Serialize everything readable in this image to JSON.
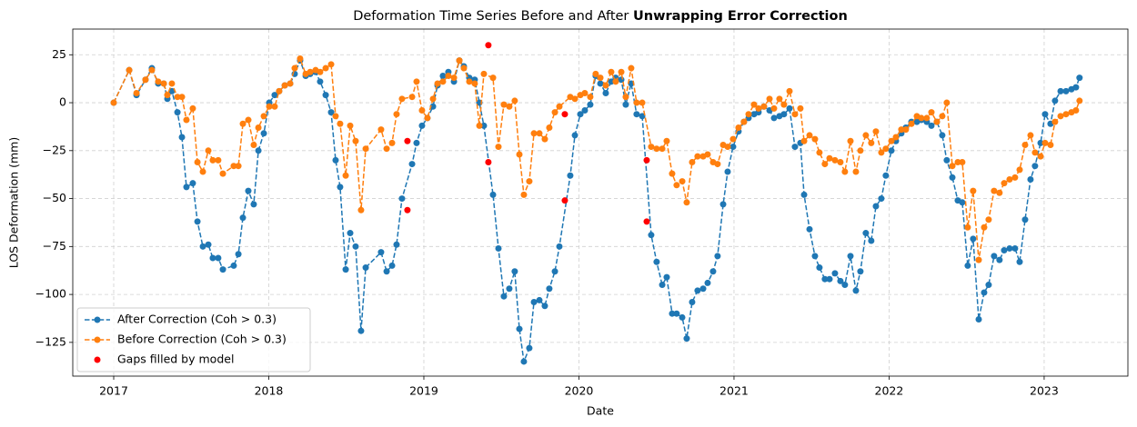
{
  "chart_data": {
    "type": "line",
    "title": "Deformation Time Series Before and After ",
    "title_bold": "Unwrapping Error Correction",
    "xlabel": "Date",
    "ylabel": "LOS Deformation (mm)",
    "xlim": [
      2016.736,
      2023.54
    ],
    "xticks": [
      2017,
      2018,
      2019,
      2020,
      2021,
      2022,
      2023
    ],
    "ylim": [
      -142.6,
      38.4
    ],
    "yticks": [
      {
        "value": -125,
        "label": "−125"
      },
      {
        "value": -100,
        "label": "−100"
      },
      {
        "value": -75,
        "label": "−75"
      },
      {
        "value": -50,
        "label": "−50"
      },
      {
        "value": -25,
        "label": "−25"
      },
      0,
      25
    ],
    "grid": true,
    "legend": "lower left",
    "x": [
      2017.0,
      2017.1,
      2017.147,
      2017.205,
      2017.246,
      2017.287,
      2017.323,
      2017.346,
      2017.375,
      2017.411,
      2017.44,
      2017.469,
      2017.51,
      2017.54,
      2017.575,
      2017.61,
      2017.639,
      2017.674,
      2017.704,
      2017.774,
      2017.804,
      2017.833,
      2017.868,
      2017.903,
      2017.933,
      2017.968,
      2018.003,
      2018.038,
      2018.067,
      2018.103,
      2018.138,
      2018.167,
      2018.202,
      2018.238,
      2018.267,
      2018.302,
      2018.331,
      2018.367,
      2018.402,
      2018.431,
      2018.46,
      2018.496,
      2018.525,
      2018.56,
      2018.595,
      2018.625,
      2018.724,
      2018.76,
      2018.795,
      2018.824,
      2018.859,
      2018.924,
      2018.953,
      2018.988,
      2019.023,
      2019.059,
      2019.088,
      2019.123,
      2019.158,
      2019.194,
      2019.229,
      2019.258,
      2019.293,
      2019.328,
      2019.358,
      2019.387,
      2019.446,
      2019.481,
      2019.516,
      2019.551,
      2019.586,
      2019.616,
      2019.645,
      2019.68,
      2019.71,
      2019.745,
      2019.78,
      2019.809,
      2019.845,
      2019.874,
      2019.944,
      2019.974,
      2020.009,
      2020.038,
      2020.073,
      2020.108,
      2020.138,
      2020.173,
      2020.208,
      2020.237,
      2020.273,
      2020.302,
      2020.337,
      2020.372,
      2020.408,
      2020.466,
      2020.501,
      2020.537,
      2020.566,
      2020.601,
      2020.63,
      2020.666,
      2020.695,
      2020.73,
      2020.765,
      2020.801,
      2020.83,
      2020.865,
      2020.894,
      2020.93,
      2020.959,
      2020.994,
      2021.029,
      2021.064,
      2021.094,
      2021.129,
      2021.158,
      2021.193,
      2021.229,
      2021.258,
      2021.293,
      2021.322,
      2021.358,
      2021.393,
      2021.428,
      2021.452,
      2021.487,
      2021.522,
      2021.551,
      2021.586,
      2021.616,
      2021.651,
      2021.686,
      2021.715,
      2021.751,
      2021.786,
      2021.815,
      2021.85,
      2021.885,
      2021.915,
      2021.95,
      2021.979,
      2022.015,
      2022.044,
      2022.079,
      2022.108,
      2022.144,
      2022.179,
      2022.208,
      2022.243,
      2022.273,
      2022.308,
      2022.343,
      2022.372,
      2022.408,
      2022.443,
      2022.472,
      2022.507,
      2022.542,
      2022.578,
      2022.613,
      2022.642,
      2022.677,
      2022.712,
      2022.742,
      2022.777,
      2022.812,
      2022.842,
      2022.877,
      2022.912,
      2022.941,
      2022.977,
      2023.006,
      2023.041,
      2023.07,
      2023.106,
      2023.141,
      2023.176,
      2023.205,
      2023.228
    ],
    "series": [
      {
        "name": "After Correction (Coh > 0.3)",
        "color": "#1f77b4",
        "linestyle": "dashed",
        "marker": true,
        "values": [
          0,
          17,
          4,
          12,
          18,
          10,
          10,
          2,
          6,
          -5,
          -18,
          -44,
          -42,
          -62,
          -75,
          -74,
          -81,
          -81,
          -87,
          -85,
          -79,
          -60,
          -46,
          -53,
          -25,
          -16,
          0,
          4,
          6,
          9,
          10,
          15,
          22,
          14,
          15,
          16,
          11,
          4,
          -5,
          -30,
          -44,
          -87,
          -68,
          -75,
          -119,
          -86,
          -78,
          -88,
          -85,
          -74,
          -50,
          -32,
          -21,
          -12,
          -8,
          -2,
          9,
          14,
          16,
          11,
          22,
          19,
          13,
          12,
          0,
          -12,
          -48,
          -76,
          -101,
          -97,
          -88,
          -118,
          -135,
          -128,
          -104,
          -103,
          -106,
          -97,
          -88,
          -75,
          -38,
          -17,
          -6,
          -4,
          -1,
          14,
          10,
          5,
          11,
          13,
          12,
          -1,
          10,
          -6,
          -7,
          -69,
          -83,
          -95,
          -91,
          -110,
          -110,
          -112,
          -123,
          -104,
          -98,
          -97,
          -94,
          -88,
          -80,
          -53,
          -36,
          -23,
          -15,
          -10,
          -8,
          -6,
          -5,
          -2,
          -4,
          -8,
          -7,
          -6,
          -3,
          -23,
          -21,
          -48,
          -66,
          -80,
          -86,
          -92,
          -92,
          -89,
          -93,
          -95,
          -80,
          -98,
          -88,
          -68,
          -72,
          -54,
          -50,
          -38,
          -25,
          -20,
          -16,
          -13,
          -10,
          -10,
          -9,
          -10,
          -12,
          -10,
          -17,
          -30,
          -39,
          -51,
          -52,
          -85,
          -71,
          -113,
          -99,
          -95,
          -80,
          -82,
          -77,
          -76,
          -76,
          -83,
          -61,
          -40,
          -33,
          -21,
          -6,
          -11,
          1,
          6,
          6,
          7,
          8,
          13
        ]
      },
      {
        "name": "Before Correction (Coh > 0.3)",
        "color": "#ff7f0e",
        "linestyle": "dashed",
        "marker": true,
        "values": [
          0,
          17,
          5,
          12,
          17,
          11,
          10,
          4,
          10,
          3,
          3,
          -9,
          -3,
          -31,
          -36,
          -25,
          -30,
          -30,
          -37,
          -33,
          -33,
          -11,
          -9,
          -22,
          -13,
          -7,
          -2,
          -2,
          6,
          9,
          10,
          18,
          23,
          15,
          16,
          17,
          16,
          18,
          20,
          -7,
          -11,
          -38,
          -12,
          -20,
          -56,
          -24,
          -14,
          -24,
          -21,
          -6,
          2,
          3,
          11,
          -4,
          -8,
          2,
          10,
          11,
          14,
          13,
          22,
          18,
          11,
          10,
          -12,
          15,
          13,
          -23,
          -1,
          -2,
          1,
          -27,
          -48,
          -41,
          -16,
          -16,
          -19,
          -13,
          -5,
          -2,
          3,
          2,
          4,
          5,
          3,
          15,
          13,
          9,
          16,
          11,
          16,
          3,
          18,
          0,
          0,
          -23,
          -24,
          -24,
          -20,
          -37,
          -43,
          -41,
          -52,
          -31,
          -28,
          -28,
          -27,
          -31,
          -32,
          -22,
          -23,
          -19,
          -13,
          -10,
          -6,
          -1,
          -3,
          -2,
          2,
          -3,
          2,
          -1,
          6,
          -6,
          -3,
          -20,
          -17,
          -19,
          -26,
          -32,
          -29,
          -30,
          -31,
          -36,
          -20,
          -36,
          -25,
          -17,
          -21,
          -15,
          -26,
          -24,
          -20,
          -18,
          -14,
          -14,
          -11,
          -7,
          -8,
          -8,
          -5,
          -10,
          -7,
          0,
          -33,
          -31,
          -31,
          -65,
          -46,
          -82,
          -65,
          -61,
          -46,
          -47,
          -42,
          -40,
          -39,
          -35,
          -22,
          -17,
          -26,
          -28,
          -21,
          -22,
          -10,
          -7,
          -6,
          -5,
          -4,
          1
        ]
      },
      {
        "name": "Gaps filled by model",
        "color": "red",
        "linestyle": "none",
        "marker": true,
        "x": [
          2018.894,
          2018.894,
          2019.416,
          2019.416,
          2019.909,
          2019.909,
          2020.437,
          2020.437
        ],
        "values": [
          -20,
          -56,
          30,
          -31,
          -6,
          -51,
          -30,
          -62
        ]
      }
    ]
  }
}
